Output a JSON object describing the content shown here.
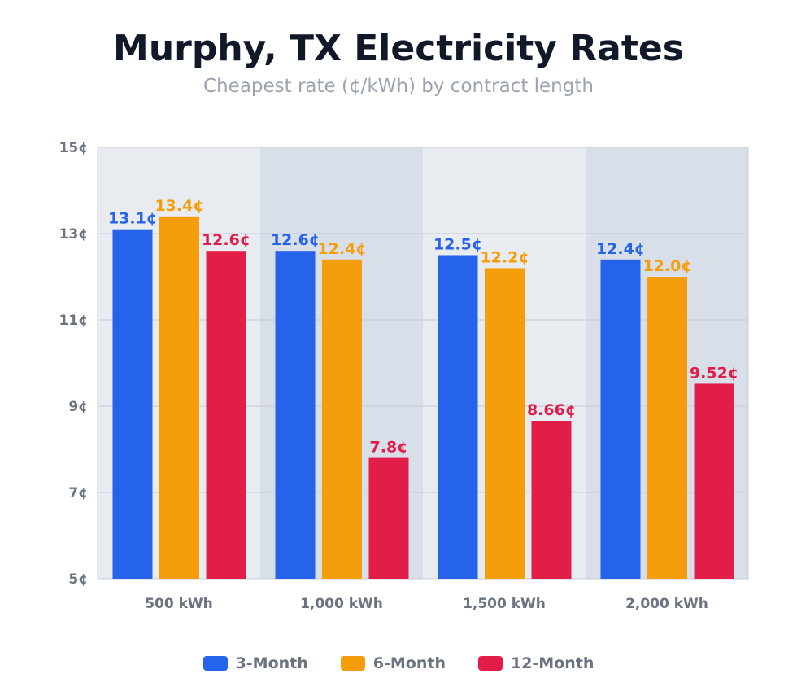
{
  "chart_data": {
    "type": "bar",
    "title": "Murphy, TX Electricity Rates",
    "subtitle": "Cheapest rate (¢/kWh) by contract length",
    "categories": [
      "500 kWh",
      "1,000 kWh",
      "1,500 kWh",
      "2,000 kWh"
    ],
    "series": [
      {
        "name": "3-Month",
        "color": "#2563eb",
        "values": [
          13.1,
          12.6,
          12.5,
          12.4
        ],
        "labels": [
          "13.1¢",
          "12.6¢",
          "12.5¢",
          "12.4¢"
        ]
      },
      {
        "name": "6-Month",
        "color": "#f59e0b",
        "values": [
          13.4,
          12.4,
          12.2,
          12.0
        ],
        "labels": [
          "13.4¢",
          "12.4¢",
          "12.2¢",
          "12.0¢"
        ]
      },
      {
        "name": "12-Month",
        "color": "#e11d48",
        "values": [
          12.6,
          7.8,
          8.66,
          9.52
        ],
        "labels": [
          "12.6¢",
          "7.8¢",
          "8.66¢",
          "9.52¢"
        ]
      }
    ],
    "ylim": [
      5,
      15
    ],
    "yticks": [
      5,
      7,
      9,
      11,
      13,
      15
    ],
    "ytick_labels": [
      "5¢",
      "7¢",
      "9¢",
      "11¢",
      "13¢",
      "15¢"
    ],
    "grid": true,
    "legend": "bottom-center",
    "band_colors": [
      "#e8ebf0",
      "#d9dfe8"
    ]
  }
}
